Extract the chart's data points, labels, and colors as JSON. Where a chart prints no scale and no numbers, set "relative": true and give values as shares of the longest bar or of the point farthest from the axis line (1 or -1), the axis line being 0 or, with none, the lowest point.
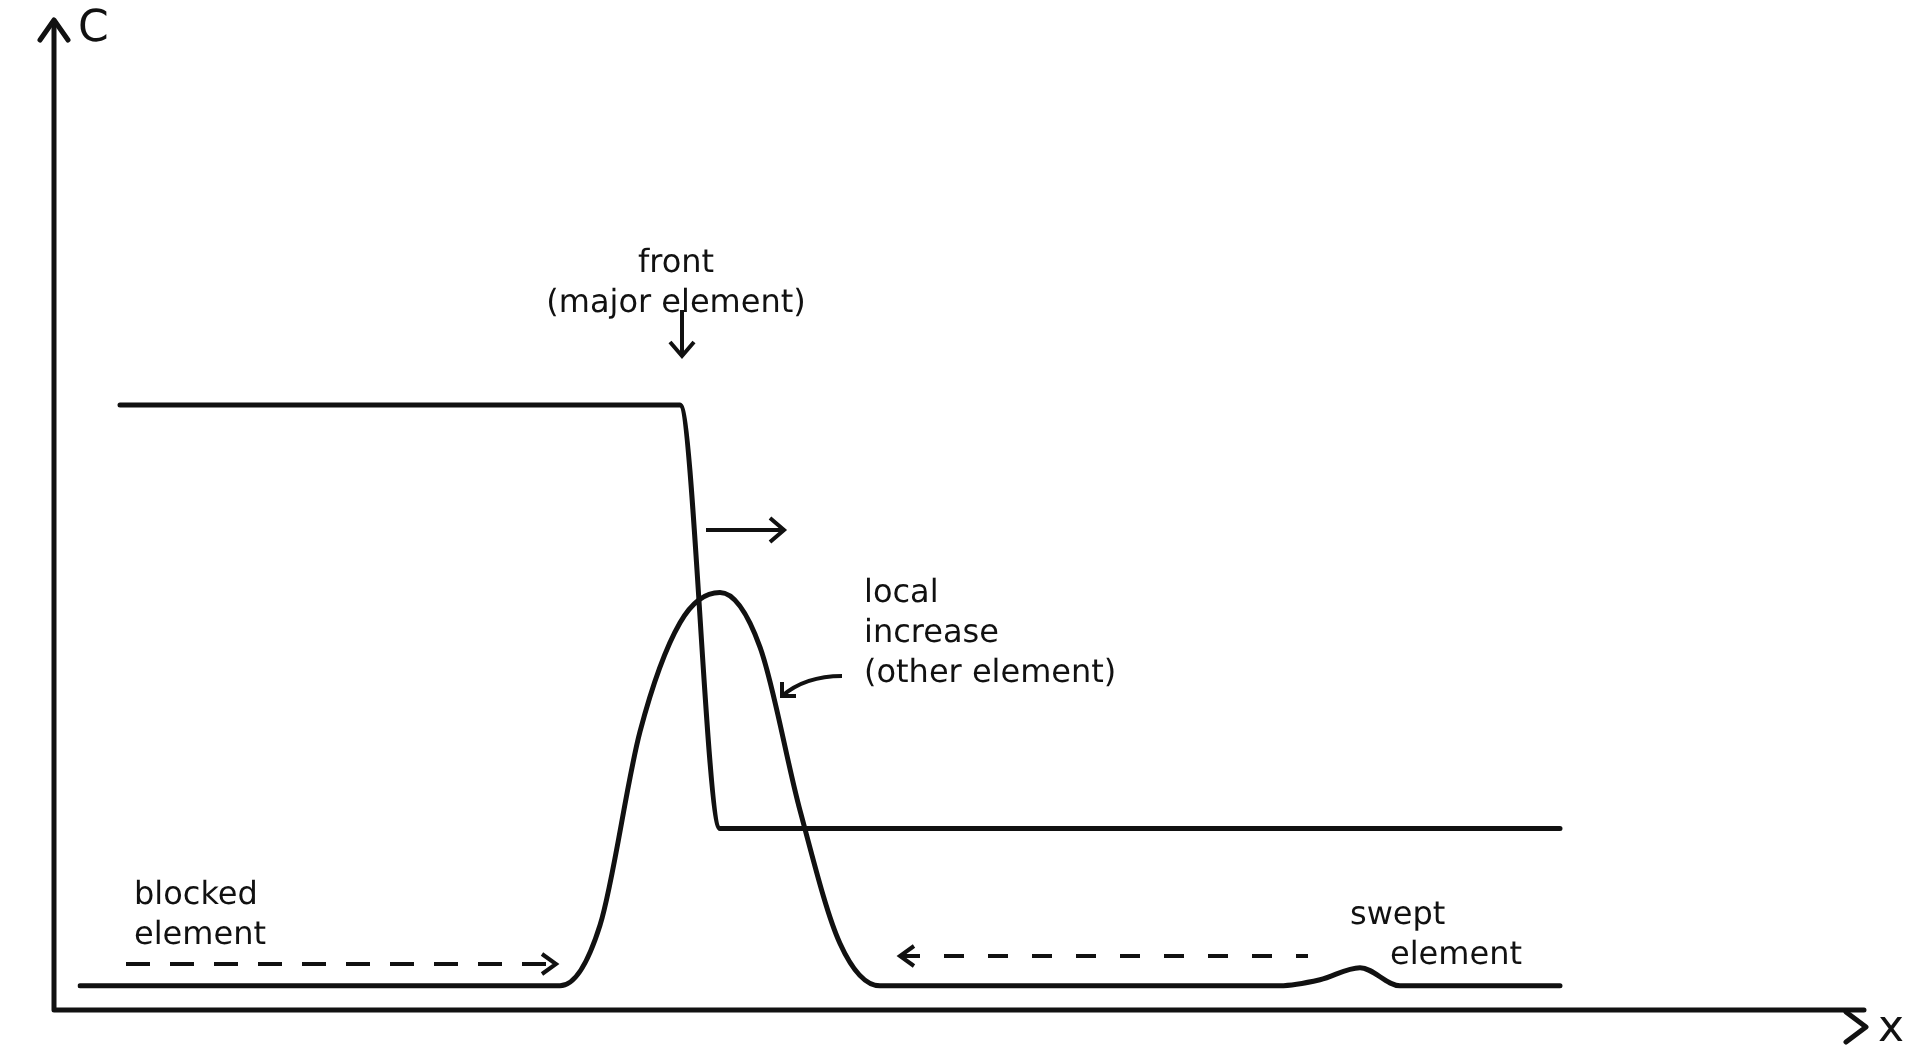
{
  "chart_data": {
    "type": "line",
    "relative": true,
    "legend": false,
    "grid": false,
    "marker": "none",
    "line_style": "solid",
    "categories": [
      null,
      null,
      null,
      null,
      null,
      null,
      null,
      null,
      null,
      null,
      null,
      null,
      null,
      null,
      null,
      null,
      null,
      null,
      null,
      null,
      null,
      null,
      null,
      null,
      null,
      null,
      null,
      null,
      null,
      null,
      null,
      null,
      null,
      null,
      null,
      null,
      null,
      null,
      null
    ],
    "series": [
      {
        "color": "#111111",
        "values": [
          null,
          1,
          1,
          1,
          1,
          1,
          1,
          1,
          1,
          1,
          1,
          1,
          1,
          1,
          1,
          1,
          0.3,
          0.3,
          0.3,
          0.3,
          0.3,
          0.3,
          0.3,
          0.3,
          0.3,
          0.3,
          0.3,
          0.3,
          0.3,
          0.3,
          0.3,
          0.3,
          0.3,
          0.3,
          0.3,
          0.3,
          0.3,
          0.3,
          null
        ]
      },
      {
        "color": "#111111",
        "values": [
          0.04,
          0.04,
          0.04,
          0.04,
          0.04,
          0.04,
          0.04,
          0.04,
          0.04,
          0.04,
          0.04,
          0.04,
          0.04,
          0.14,
          0.46,
          0.64,
          0.69,
          0.6,
          0.33,
          0.11,
          0.04,
          0.04,
          0.04,
          0.04,
          0.04,
          0.04,
          0.04,
          0.04,
          0.04,
          0.04,
          0.04,
          0.05,
          0.07,
          0.04,
          0.04,
          0.04,
          0.04,
          0.04,
          null
        ]
      }
    ],
    "annotations": [
      "front\n(major element)",
      "local\nincrease\n(other element)",
      "blocked\nelement",
      "swept\nelement",
      "C",
      "x"
    ]
  }
}
